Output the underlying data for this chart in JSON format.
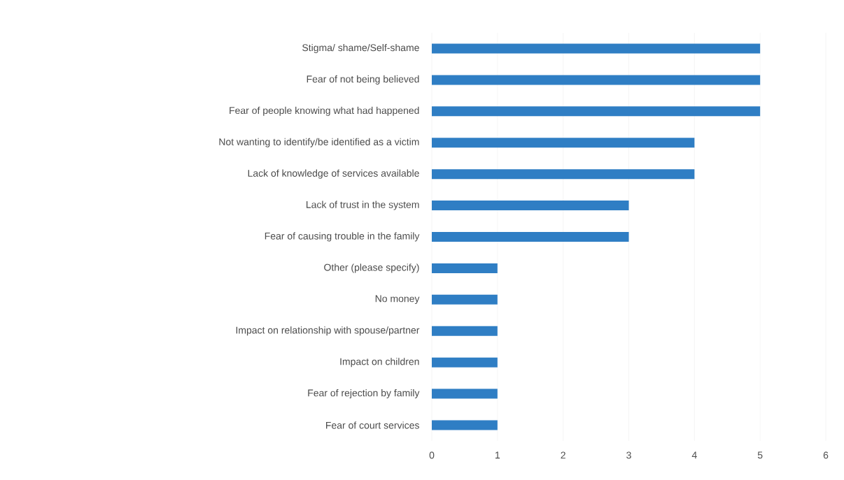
{
  "chart_data": {
    "type": "bar",
    "orientation": "horizontal",
    "categories": [
      "Stigma/ shame/Self-shame",
      "Fear of not being believed",
      "Fear of people knowing what had happened",
      "Not wanting to identify/be identified as a victim",
      "Lack of knowledge of services available",
      "Lack of trust in the system",
      "Fear of causing trouble in the family",
      "Other (please specify)",
      "No money",
      "Impact on relationship with spouse/partner",
      "Impact on children",
      "Fear of rejection by family",
      "Fear of court services"
    ],
    "values": [
      5,
      5,
      5,
      4,
      4,
      3,
      3,
      1,
      1,
      1,
      1,
      1,
      1
    ],
    "color": "#2f7ec4",
    "xlim": [
      0,
      6
    ],
    "xticks": [
      0,
      1,
      2,
      3,
      4,
      5,
      6
    ],
    "grid": "x"
  }
}
